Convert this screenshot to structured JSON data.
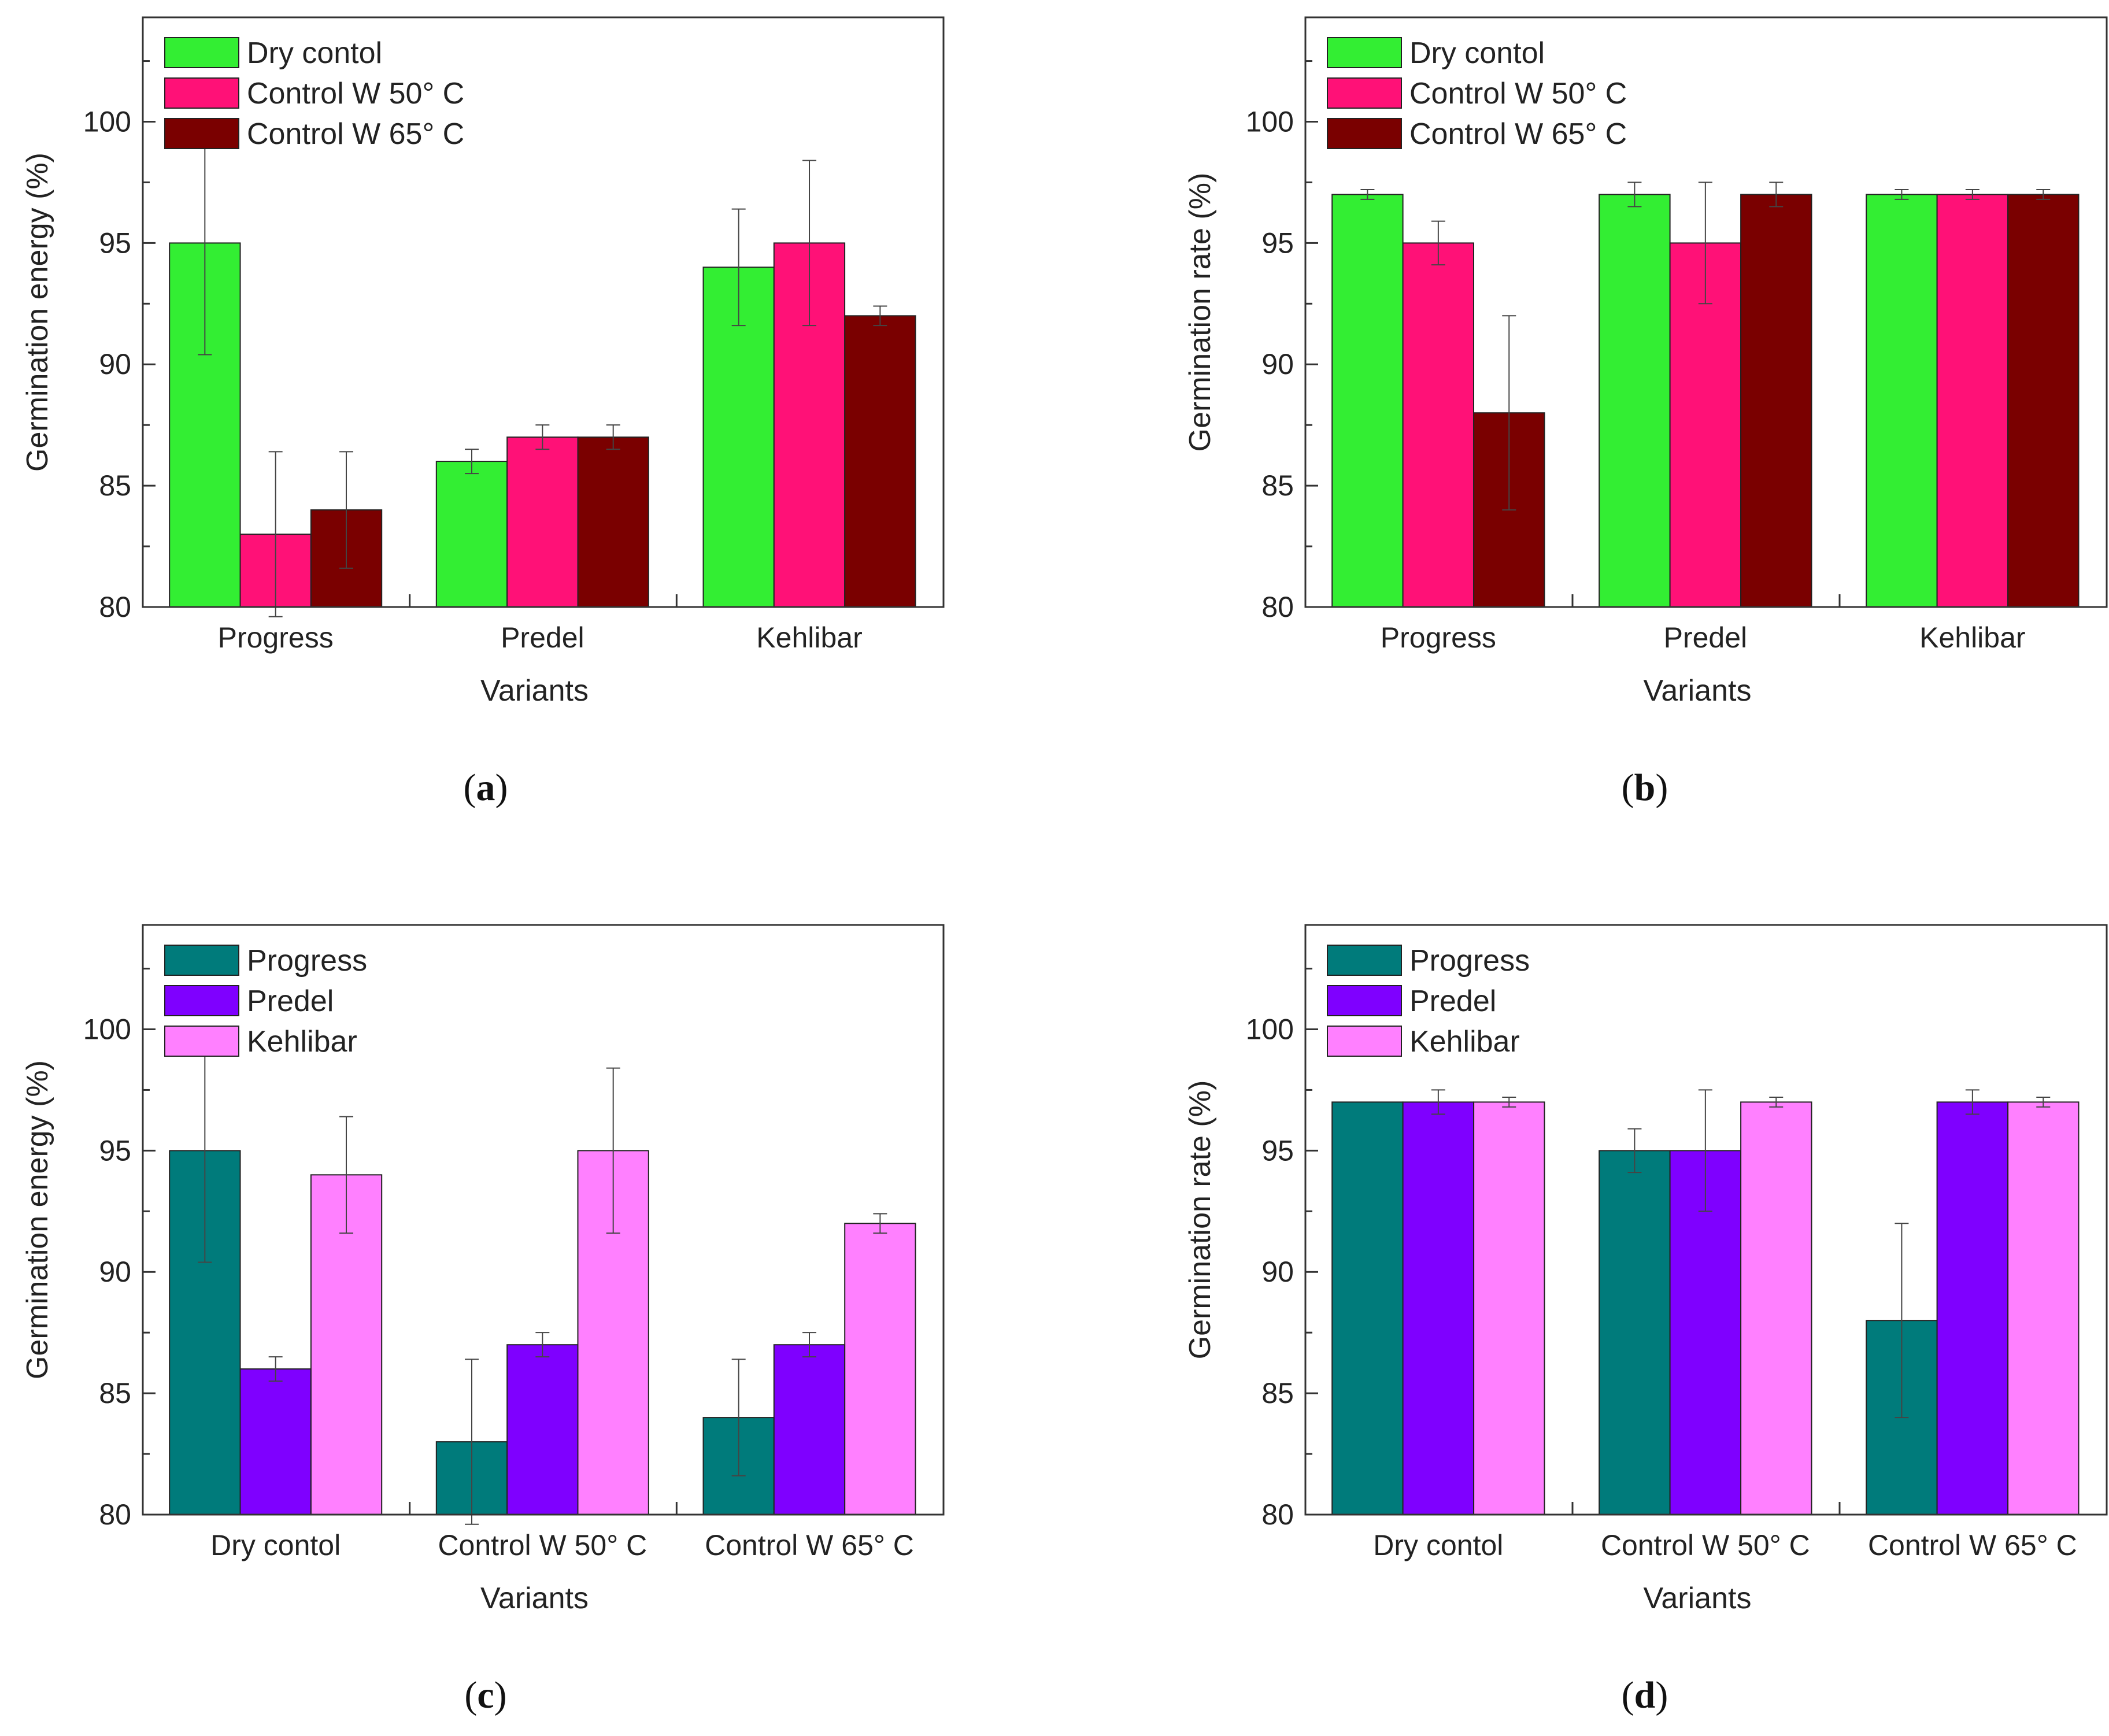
{
  "chart_data": [
    {
      "id": "a",
      "panel_label": "a",
      "type": "bar",
      "xlabel": "Variants",
      "ylabel": "Germination energy (%)",
      "ylim": [
        80,
        104.3
      ],
      "yticks": [
        80,
        85,
        90,
        95,
        100
      ],
      "legend_position": "top-left",
      "categories": [
        "Progress",
        "Predel",
        "Kehlibar"
      ],
      "series": [
        {
          "name": "Dry contol",
          "color": "#33ee33",
          "values": [
            95,
            86,
            94
          ],
          "errors": [
            4.6,
            0.5,
            2.4
          ]
        },
        {
          "name": "Control W 50° C",
          "color": "#ff1177",
          "values": [
            83,
            87,
            95
          ],
          "errors": [
            3.4,
            0.5,
            3.4
          ]
        },
        {
          "name": "Control W 65° C",
          "color": "#7a0000",
          "values": [
            84,
            87,
            92
          ],
          "errors": [
            2.4,
            0.5,
            0.4
          ]
        }
      ]
    },
    {
      "id": "b",
      "panel_label": "b",
      "type": "bar",
      "xlabel": "Variants",
      "ylabel": "Germination rate (%)",
      "ylim": [
        80,
        104.3
      ],
      "yticks": [
        80,
        85,
        90,
        95,
        100
      ],
      "legend_position": "top-left",
      "categories": [
        "Progress",
        "Predel",
        "Kehlibar"
      ],
      "series": [
        {
          "name": "Dry contol",
          "color": "#33ee33",
          "values": [
            97,
            97,
            97
          ],
          "errors": [
            0.2,
            0.5,
            0.2
          ]
        },
        {
          "name": "Control W 50° C",
          "color": "#ff1177",
          "values": [
            95,
            95,
            97
          ],
          "errors": [
            0.9,
            2.5,
            0.2
          ]
        },
        {
          "name": "Control W 65° C",
          "color": "#7a0000",
          "values": [
            88,
            97,
            97
          ],
          "errors": [
            4.0,
            0.5,
            0.2
          ]
        }
      ]
    },
    {
      "id": "c",
      "panel_label": "c",
      "type": "bar",
      "xlabel": "Variants",
      "ylabel": "Germination energy (%)",
      "ylim": [
        80,
        104.3
      ],
      "yticks": [
        80,
        85,
        90,
        95,
        100
      ],
      "legend_position": "top-left",
      "categories": [
        "Dry contol",
        "Control W 50° C",
        "Control W 65° C"
      ],
      "series": [
        {
          "name": "Progress",
          "color": "#007b7b",
          "values": [
            95,
            83,
            84
          ],
          "errors": [
            4.6,
            3.4,
            2.4
          ]
        },
        {
          "name": "Predel",
          "color": "#7f00ff",
          "values": [
            86,
            87,
            87
          ],
          "errors": [
            0.5,
            0.5,
            0.5
          ]
        },
        {
          "name": "Kehlibar",
          "color": "#ff80ff",
          "values": [
            94,
            95,
            92
          ],
          "errors": [
            2.4,
            3.4,
            0.4
          ]
        }
      ]
    },
    {
      "id": "d",
      "panel_label": "d",
      "type": "bar",
      "xlabel": "Variants",
      "ylabel": "Germination rate (%)",
      "ylim": [
        80,
        104.3
      ],
      "yticks": [
        80,
        85,
        90,
        95,
        100
      ],
      "legend_position": "top-left",
      "categories": [
        "Dry contol",
        "Control W 50° C",
        "Control W 65° C"
      ],
      "series": [
        {
          "name": "Progress",
          "color": "#007b7b",
          "values": [
            97,
            95,
            88
          ],
          "errors": [
            0,
            0.9,
            4.0
          ]
        },
        {
          "name": "Predel",
          "color": "#7f00ff",
          "values": [
            97,
            95,
            97
          ],
          "errors": [
            0.5,
            2.5,
            0.5
          ]
        },
        {
          "name": "Kehlibar",
          "color": "#ff80ff",
          "values": [
            97,
            97,
            97
          ],
          "errors": [
            0.2,
            0.2,
            0.2
          ]
        }
      ]
    }
  ]
}
